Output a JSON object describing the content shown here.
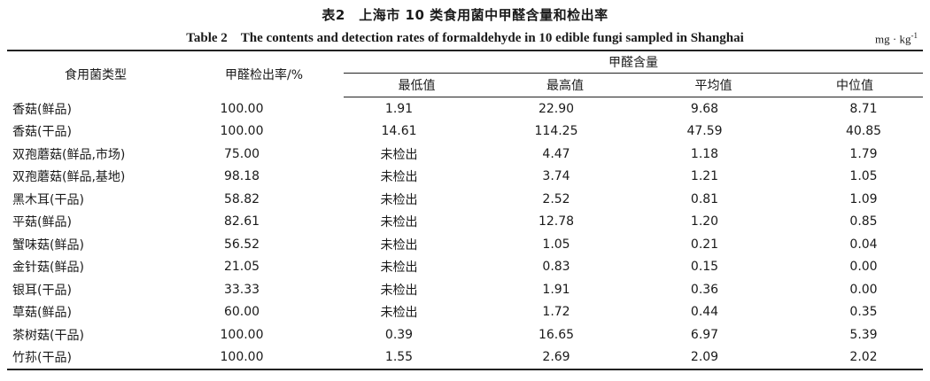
{
  "title_cn": "表2　上海市 10 类食用菌中甲醛含量和检出率",
  "title_en": "Table 2　The contents and detection rates of formaldehyde in 10 edible fungi sampled in Shanghai",
  "unit": "mg · kg",
  "unit_sup": "-1",
  "headers": {
    "type": "食用菌类型",
    "rate": "甲醛检出率/%",
    "content": "甲醛含量",
    "min": "最低值",
    "max": "最高值",
    "avg": "平均值",
    "median": "中位值"
  },
  "rows": [
    {
      "name": "香菇(鲜品)",
      "rate": "100.00",
      "min": "1.91",
      "max": "22.90",
      "avg": "9.68",
      "median": "8.71"
    },
    {
      "name": "香菇(干品)",
      "rate": "100.00",
      "min": "14.61",
      "max": "114.25",
      "avg": "47.59",
      "median": "40.85"
    },
    {
      "name": "双孢蘑菇(鲜品,市场)",
      "rate": "75.00",
      "min": "未检出",
      "max": "4.47",
      "avg": "1.18",
      "median": "1.79"
    },
    {
      "name": "双孢蘑菇(鲜品,基地)",
      "rate": "98.18",
      "min": "未检出",
      "max": "3.74",
      "avg": "1.21",
      "median": "1.05"
    },
    {
      "name": "黑木耳(干品)",
      "rate": "58.82",
      "min": "未检出",
      "max": "2.52",
      "avg": "0.81",
      "median": "1.09"
    },
    {
      "name": "平菇(鲜品)",
      "rate": "82.61",
      "min": "未检出",
      "max": "12.78",
      "avg": "1.20",
      "median": "0.85"
    },
    {
      "name": "蟹味菇(鲜品)",
      "rate": "56.52",
      "min": "未检出",
      "max": "1.05",
      "avg": "0.21",
      "median": "0.04"
    },
    {
      "name": "金针菇(鲜品)",
      "rate": "21.05",
      "min": "未检出",
      "max": "0.83",
      "avg": "0.15",
      "median": "0.00"
    },
    {
      "name": "银耳(干品)",
      "rate": "33.33",
      "min": "未检出",
      "max": "1.91",
      "avg": "0.36",
      "median": "0.00"
    },
    {
      "name": "草菇(鲜品)",
      "rate": "60.00",
      "min": "未检出",
      "max": "1.72",
      "avg": "0.44",
      "median": "0.35"
    },
    {
      "name": "茶树菇(干品)",
      "rate": "100.00",
      "min": "0.39",
      "max": "16.65",
      "avg": "6.97",
      "median": "5.39"
    },
    {
      "name": "竹荪(干品)",
      "rate": "100.00",
      "min": "1.55",
      "max": "2.69",
      "avg": "2.09",
      "median": "2.02"
    }
  ]
}
